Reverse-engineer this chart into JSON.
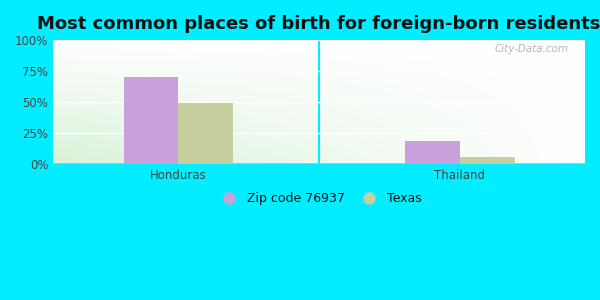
{
  "title": "Most common places of birth for foreign-born residents",
  "categories": [
    "Honduras",
    "Thailand"
  ],
  "series": {
    "Zip code 76937": [
      70.0,
      19.0
    ],
    "Texas": [
      49.0,
      6.0
    ]
  },
  "bar_colors": {
    "Zip code 76937": "#c9a0dc",
    "Texas": "#c8cf9e"
  },
  "bar_width": 0.35,
  "ylim": [
    0,
    100
  ],
  "yticks": [
    0,
    25,
    50,
    75,
    100
  ],
  "ytick_labels": [
    "0%",
    "25%",
    "50%",
    "75%",
    "100%"
  ],
  "background_color_outer": "#00eeff",
  "grid_color": "#ffffff",
  "title_fontsize": 13,
  "tick_fontsize": 8.5,
  "legend_fontsize": 9,
  "watermark": "City-Data.com",
  "group_positions": [
    0.8,
    2.6
  ],
  "xlim": [
    0.0,
    3.4
  ]
}
